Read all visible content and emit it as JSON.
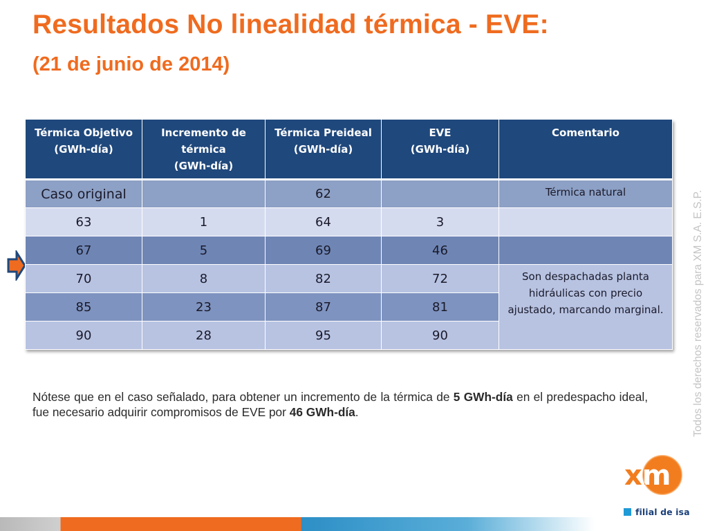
{
  "header": {
    "title": "Resultados No linealidad térmica - EVE:",
    "subtitle": "(21 de junio de 2014)"
  },
  "table": {
    "headers": [
      [
        "Térmica Objetivo",
        "(GWh-día)"
      ],
      [
        "Incremento de",
        "térmica",
        "(GWh-día)"
      ],
      [
        "Térmica Preideal",
        "(GWh-día)"
      ],
      [
        "EVE",
        "(GWh-día)"
      ],
      [
        "Comentario"
      ]
    ],
    "rows": [
      {
        "cells": [
          "Caso original",
          "",
          "62",
          ""
        ],
        "comment": "Térmica natural"
      },
      {
        "cells": [
          "63",
          "1",
          "64",
          "3"
        ],
        "comment": ""
      },
      {
        "cells": [
          "67",
          "5",
          "69",
          "46"
        ],
        "comment": ""
      },
      {
        "cells": [
          "70",
          "8",
          "82",
          "72"
        ],
        "comment": "Son despachadas planta hidráulicas con precio ajustado, marcando marginal."
      },
      {
        "cells": [
          "85",
          "23",
          "87",
          "81"
        ]
      },
      {
        "cells": [
          "90",
          "28",
          "95",
          "90"
        ]
      }
    ]
  },
  "note": {
    "text_1": "Nótese que en el caso señalado, para obtener un incremento de la térmica de ",
    "bold_1": "5 GWh-día",
    "text_2": " en el predespacho ideal, fue necesario adquirir compromisos de EVE por ",
    "bold_2": "46 GWh-día",
    "text_3": "."
  },
  "side_text": "Todos los derechos reservados para XM S.A. E.S.P.",
  "logo": {
    "brand": "xm",
    "tagline": "filial de isa"
  },
  "icons": {
    "row_pointer": "arrow-right-icon"
  },
  "colors": {
    "title": "#ef6b1f",
    "table_header": "#1f487c",
    "logo_orange": "#f27d1f",
    "logo_blue": "#1f9ad6"
  }
}
